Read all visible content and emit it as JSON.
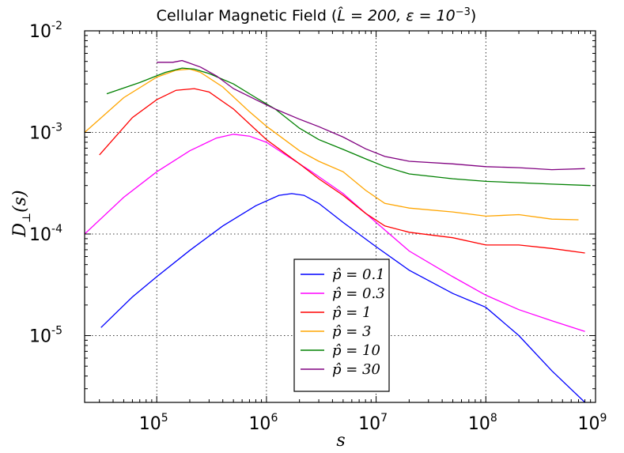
{
  "chart_data": {
    "type": "line",
    "title_prefix": "Cellular Magnetic Field (",
    "title_math": "L̂ = 200, ε = 10",
    "title_exp": "−3",
    "title_suffix": ")",
    "xlabel": "s",
    "ylabel_main": "D",
    "ylabel_sub": "⊥",
    "ylabel_suffix": "(s)",
    "xscale": "log",
    "yscale": "log",
    "xlim": [
      22000,
      1000000000
    ],
    "ylim": [
      2.2e-06,
      0.01
    ],
    "grid": true,
    "legend_position": "lower-center",
    "x_ticks": [
      {
        "value": 100000,
        "base": "10",
        "exp": "5"
      },
      {
        "value": 1000000,
        "base": "10",
        "exp": "6"
      },
      {
        "value": 10000000,
        "base": "10",
        "exp": "7"
      },
      {
        "value": 100000000,
        "base": "10",
        "exp": "8"
      },
      {
        "value": 1000000000,
        "base": "10",
        "exp": "9"
      }
    ],
    "y_ticks": [
      {
        "value": 1e-05,
        "base": "10",
        "exp": "-5"
      },
      {
        "value": 0.0001,
        "base": "10",
        "exp": "-4"
      },
      {
        "value": 0.001,
        "base": "10",
        "exp": "-3"
      },
      {
        "value": 0.01,
        "base": "10",
        "exp": "-2"
      }
    ],
    "series": [
      {
        "name": "p̂ = 0.1",
        "color": "#0000ff",
        "x": [
          31000,
          60000,
          100000,
          200000,
          400000,
          800000,
          1300000,
          1700000,
          2200000,
          3000000,
          5000000,
          10000000,
          20000000,
          50000000,
          100000000,
          200000000,
          400000000,
          800000000
        ],
        "y": [
          1.2e-05,
          2.4e-05,
          3.8e-05,
          6.9e-05,
          0.00012,
          0.00019,
          0.00024,
          0.00025,
          0.00024,
          0.0002,
          0.00013,
          7.5e-05,
          4.4e-05,
          2.6e-05,
          1.9e-05,
          1e-05,
          4.5e-06,
          2.2e-06
        ]
      },
      {
        "name": "p̂ = 0.3",
        "color": "#ff00ff",
        "x": [
          22000,
          50000,
          100000,
          200000,
          350000,
          500000,
          700000,
          1000000,
          1500000,
          2500000,
          5000000,
          10000000,
          20000000,
          50000000,
          100000000,
          200000000,
          400000000,
          800000000
        ],
        "y": [
          0.0001,
          0.00023,
          0.00041,
          0.00066,
          0.00088,
          0.00096,
          0.00092,
          0.0008,
          0.0006,
          0.00042,
          0.00025,
          0.00013,
          6.8e-05,
          3.8e-05,
          2.5e-05,
          1.8e-05,
          1.4e-05,
          1.1e-05
        ]
      },
      {
        "name": "p̂ = 1",
        "color": "#ff0000",
        "x": [
          30000,
          60000,
          100000,
          150000,
          220000,
          300000,
          500000,
          1000000,
          2000000,
          3000000,
          5000000,
          8000000,
          12000000,
          20000000,
          50000000,
          100000000,
          200000000,
          400000000,
          800000000
        ],
        "y": [
          0.0006,
          0.0014,
          0.0021,
          0.0026,
          0.0027,
          0.0025,
          0.0017,
          0.00085,
          0.00049,
          0.00035,
          0.00024,
          0.00016,
          0.00012,
          0.000104,
          9.2e-05,
          7.8e-05,
          7.8e-05,
          7.2e-05,
          6.5e-05
        ]
      },
      {
        "name": "p̂ = 3",
        "color": "#ffa500",
        "x": [
          22000,
          50000,
          100000,
          150000,
          200000,
          250000,
          400000,
          700000,
          1000000,
          2000000,
          3000000,
          5000000,
          8000000,
          12000000,
          20000000,
          50000000,
          100000000,
          200000000,
          400000000,
          700000000
        ],
        "y": [
          0.001,
          0.0022,
          0.0035,
          0.0041,
          0.0042,
          0.0039,
          0.0028,
          0.0016,
          0.00115,
          0.00066,
          0.00052,
          0.00041,
          0.00027,
          0.0002,
          0.00018,
          0.000165,
          0.00015,
          0.000155,
          0.00014,
          0.000138
        ]
      },
      {
        "name": "p̂ = 10",
        "color": "#008000",
        "x": [
          35000,
          70000,
          120000,
          170000,
          220000,
          300000,
          500000,
          800000,
          1200000,
          2000000,
          3000000,
          5000000,
          8000000,
          12000000,
          20000000,
          50000000,
          100000000,
          200000000,
          400000000,
          900000000
        ],
        "y": [
          0.0024,
          0.0031,
          0.0039,
          0.0043,
          0.0042,
          0.0038,
          0.003,
          0.0022,
          0.0017,
          0.0011,
          0.00085,
          0.00068,
          0.00055,
          0.00046,
          0.00039,
          0.00035,
          0.00033,
          0.00032,
          0.00031,
          0.0003
        ]
      },
      {
        "name": "p̂ = 30",
        "color": "#800080",
        "x": [
          100000,
          140000,
          170000,
          200000,
          250000,
          350000,
          500000,
          800000,
          1200000,
          2000000,
          3000000,
          5000000,
          8000000,
          12000000,
          20000000,
          50000000,
          100000000,
          200000000,
          400000000,
          800000000
        ],
        "y": [
          0.0049,
          0.0049,
          0.0051,
          0.0048,
          0.0044,
          0.0036,
          0.0027,
          0.0021,
          0.0017,
          0.00135,
          0.00114,
          0.0009,
          0.00069,
          0.00058,
          0.00052,
          0.00049,
          0.00046,
          0.00045,
          0.00043,
          0.00044
        ]
      }
    ]
  }
}
